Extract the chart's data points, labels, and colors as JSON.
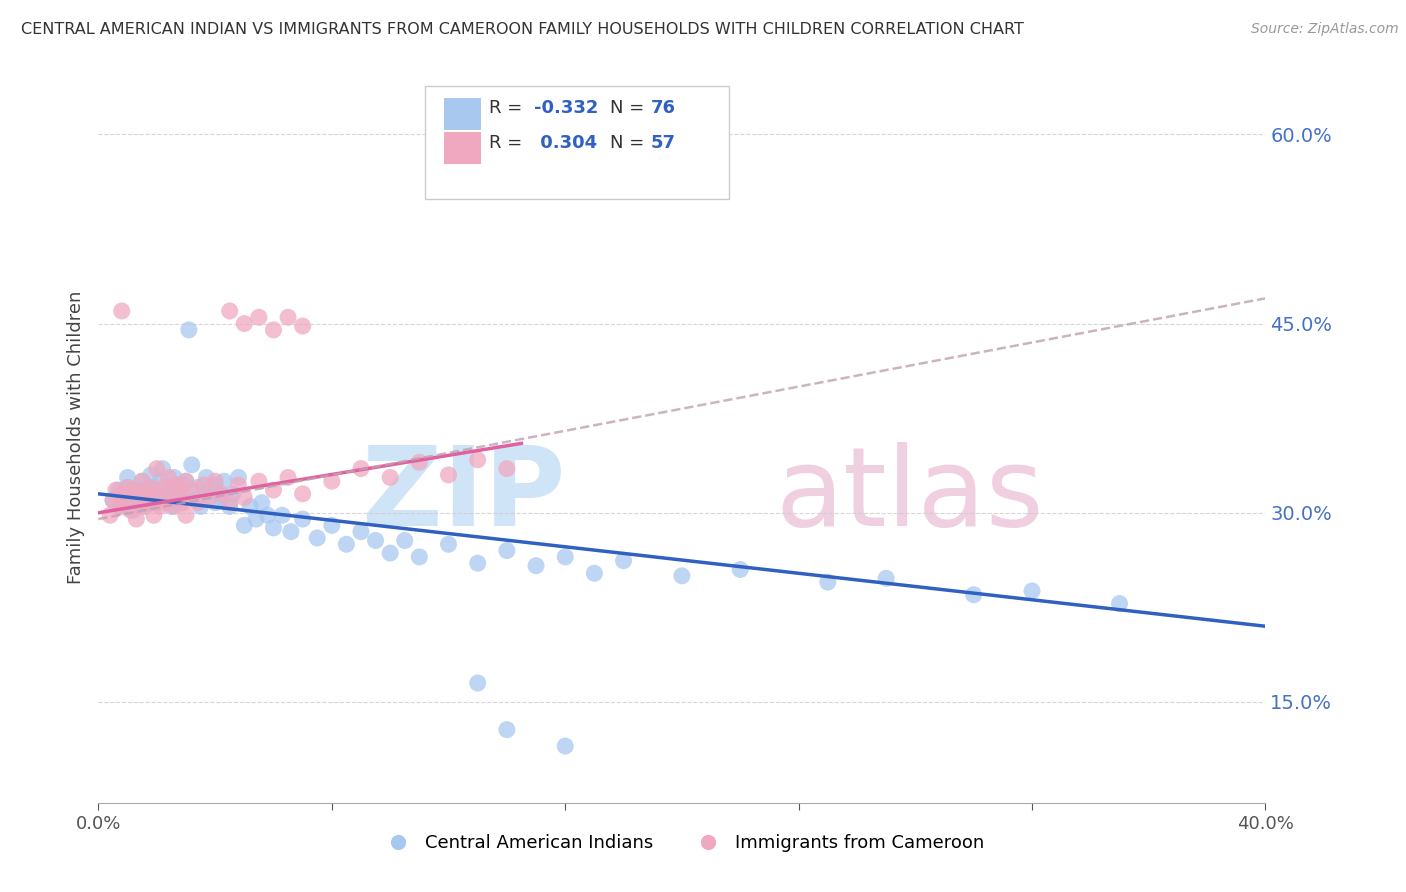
{
  "title": "CENTRAL AMERICAN INDIAN VS IMMIGRANTS FROM CAMEROON FAMILY HOUSEHOLDS WITH CHILDREN CORRELATION CHART",
  "source": "Source: ZipAtlas.com",
  "ylabel": "Family Households with Children",
  "xlim": [
    0.0,
    0.4
  ],
  "ylim": [
    0.07,
    0.65
  ],
  "ytick_positions": [
    0.15,
    0.3,
    0.45,
    0.6
  ],
  "ytick_labels": [
    "15.0%",
    "30.0%",
    "45.0%",
    "60.0%"
  ],
  "color_blue": "#a8c8f0",
  "color_pink": "#f0a8c0",
  "color_blue_line": "#3060c0",
  "color_pink_line": "#e060a0",
  "color_gray_line": "#c0a0b0",
  "blue_dots": [
    [
      0.005,
      0.31
    ],
    [
      0.007,
      0.318
    ],
    [
      0.008,
      0.305
    ],
    [
      0.009,
      0.315
    ],
    [
      0.01,
      0.308
    ],
    [
      0.01,
      0.32
    ],
    [
      0.01,
      0.328
    ],
    [
      0.011,
      0.312
    ],
    [
      0.012,
      0.302
    ],
    [
      0.013,
      0.318
    ],
    [
      0.014,
      0.308
    ],
    [
      0.015,
      0.315
    ],
    [
      0.015,
      0.325
    ],
    [
      0.016,
      0.305
    ],
    [
      0.017,
      0.32
    ],
    [
      0.018,
      0.31
    ],
    [
      0.018,
      0.33
    ],
    [
      0.019,
      0.315
    ],
    [
      0.02,
      0.308
    ],
    [
      0.02,
      0.318
    ],
    [
      0.021,
      0.325
    ],
    [
      0.022,
      0.335
    ],
    [
      0.023,
      0.312
    ],
    [
      0.024,
      0.32
    ],
    [
      0.025,
      0.305
    ],
    [
      0.025,
      0.315
    ],
    [
      0.026,
      0.328
    ],
    [
      0.027,
      0.318
    ],
    [
      0.028,
      0.308
    ],
    [
      0.029,
      0.322
    ],
    [
      0.03,
      0.312
    ],
    [
      0.03,
      0.325
    ],
    [
      0.031,
      0.445
    ],
    [
      0.032,
      0.338
    ],
    [
      0.033,
      0.31
    ],
    [
      0.034,
      0.32
    ],
    [
      0.035,
      0.305
    ],
    [
      0.036,
      0.315
    ],
    [
      0.037,
      0.328
    ],
    [
      0.038,
      0.318
    ],
    [
      0.04,
      0.308
    ],
    [
      0.04,
      0.322
    ],
    [
      0.042,
      0.312
    ],
    [
      0.043,
      0.325
    ],
    [
      0.045,
      0.305
    ],
    [
      0.046,
      0.315
    ],
    [
      0.048,
      0.328
    ],
    [
      0.05,
      0.29
    ],
    [
      0.052,
      0.305
    ],
    [
      0.054,
      0.295
    ],
    [
      0.056,
      0.308
    ],
    [
      0.058,
      0.298
    ],
    [
      0.06,
      0.288
    ],
    [
      0.063,
      0.298
    ],
    [
      0.066,
      0.285
    ],
    [
      0.07,
      0.295
    ],
    [
      0.075,
      0.28
    ],
    [
      0.08,
      0.29
    ],
    [
      0.085,
      0.275
    ],
    [
      0.09,
      0.285
    ],
    [
      0.095,
      0.278
    ],
    [
      0.1,
      0.268
    ],
    [
      0.105,
      0.278
    ],
    [
      0.11,
      0.265
    ],
    [
      0.12,
      0.275
    ],
    [
      0.13,
      0.26
    ],
    [
      0.14,
      0.27
    ],
    [
      0.15,
      0.258
    ],
    [
      0.16,
      0.265
    ],
    [
      0.17,
      0.252
    ],
    [
      0.18,
      0.262
    ],
    [
      0.2,
      0.25
    ],
    [
      0.22,
      0.255
    ],
    [
      0.25,
      0.245
    ],
    [
      0.27,
      0.248
    ],
    [
      0.3,
      0.235
    ],
    [
      0.32,
      0.238
    ],
    [
      0.35,
      0.228
    ],
    [
      0.13,
      0.165
    ],
    [
      0.14,
      0.128
    ],
    [
      0.16,
      0.115
    ]
  ],
  "pink_dots": [
    [
      0.004,
      0.298
    ],
    [
      0.005,
      0.31
    ],
    [
      0.006,
      0.318
    ],
    [
      0.007,
      0.305
    ],
    [
      0.008,
      0.315
    ],
    [
      0.009,
      0.308
    ],
    [
      0.01,
      0.32
    ],
    [
      0.011,
      0.302
    ],
    [
      0.012,
      0.318
    ],
    [
      0.013,
      0.295
    ],
    [
      0.014,
      0.312
    ],
    [
      0.015,
      0.305
    ],
    [
      0.015,
      0.325
    ],
    [
      0.016,
      0.315
    ],
    [
      0.017,
      0.308
    ],
    [
      0.018,
      0.32
    ],
    [
      0.019,
      0.298
    ],
    [
      0.02,
      0.315
    ],
    [
      0.02,
      0.335
    ],
    [
      0.021,
      0.305
    ],
    [
      0.022,
      0.32
    ],
    [
      0.023,
      0.308
    ],
    [
      0.024,
      0.328
    ],
    [
      0.025,
      0.318
    ],
    [
      0.026,
      0.305
    ],
    [
      0.027,
      0.322
    ],
    [
      0.028,
      0.315
    ],
    [
      0.029,
      0.308
    ],
    [
      0.03,
      0.325
    ],
    [
      0.03,
      0.298
    ],
    [
      0.032,
      0.318
    ],
    [
      0.034,
      0.308
    ],
    [
      0.036,
      0.322
    ],
    [
      0.038,
      0.312
    ],
    [
      0.04,
      0.325
    ],
    [
      0.042,
      0.315
    ],
    [
      0.045,
      0.308
    ],
    [
      0.048,
      0.322
    ],
    [
      0.05,
      0.312
    ],
    [
      0.055,
      0.325
    ],
    [
      0.06,
      0.318
    ],
    [
      0.065,
      0.328
    ],
    [
      0.07,
      0.315
    ],
    [
      0.08,
      0.325
    ],
    [
      0.09,
      0.335
    ],
    [
      0.1,
      0.328
    ],
    [
      0.11,
      0.34
    ],
    [
      0.12,
      0.33
    ],
    [
      0.13,
      0.342
    ],
    [
      0.14,
      0.335
    ],
    [
      0.045,
      0.46
    ],
    [
      0.05,
      0.45
    ],
    [
      0.055,
      0.455
    ],
    [
      0.06,
      0.445
    ],
    [
      0.065,
      0.455
    ],
    [
      0.07,
      0.448
    ],
    [
      0.008,
      0.46
    ]
  ],
  "blue_line_x": [
    0.0,
    0.4
  ],
  "blue_line_y": [
    0.315,
    0.21
  ],
  "pink_line_x": [
    0.0,
    0.145
  ],
  "pink_line_y": [
    0.3,
    0.355
  ],
  "gray_line_x": [
    0.0,
    0.4
  ],
  "gray_line_y": [
    0.295,
    0.47
  ]
}
